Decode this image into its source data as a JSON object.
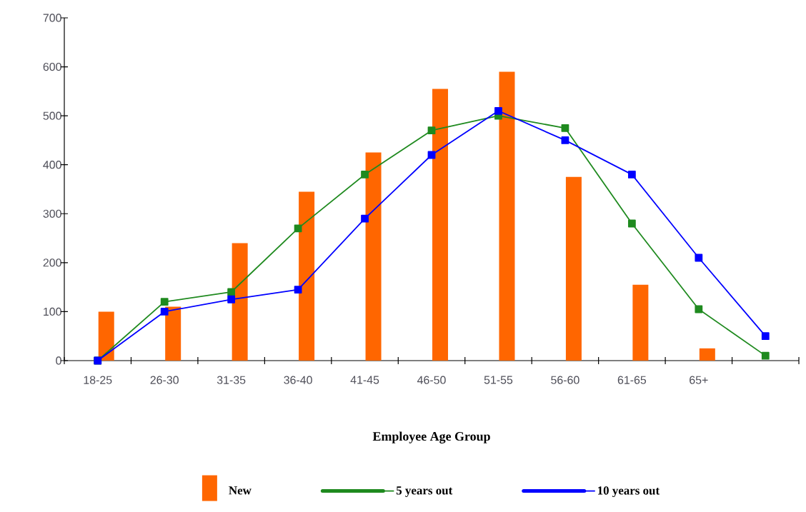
{
  "chart_data": {
    "type": "bar",
    "xlabel": "Employee Age Group",
    "categories": [
      "18-25",
      "26-30",
      "31-35",
      "36-40",
      "41-45",
      "46-50",
      "51-55",
      "56-60",
      "61-65",
      "65+",
      null
    ],
    "series": [
      {
        "name": "New",
        "color": "#ff6600",
        "values": [
          100,
          110,
          240,
          345,
          425,
          555,
          590,
          375,
          155,
          25,
          null
        ]
      },
      {
        "name": "5 years out",
        "type": "line",
        "color": "#1f8a1f",
        "values": [
          0,
          120,
          140,
          270,
          380,
          470,
          500,
          475,
          280,
          105,
          10
        ]
      },
      {
        "name": "10 years out",
        "type": "line",
        "color": "#0000ff",
        "values": [
          0,
          100,
          125,
          145,
          290,
          420,
          510,
          450,
          380,
          210,
          50
        ]
      }
    ],
    "ylim": [
      0,
      700
    ],
    "yticks": [
      0,
      100,
      200,
      300,
      400,
      500,
      600,
      700
    ],
    "legend": "bottom",
    "marker": "square"
  }
}
